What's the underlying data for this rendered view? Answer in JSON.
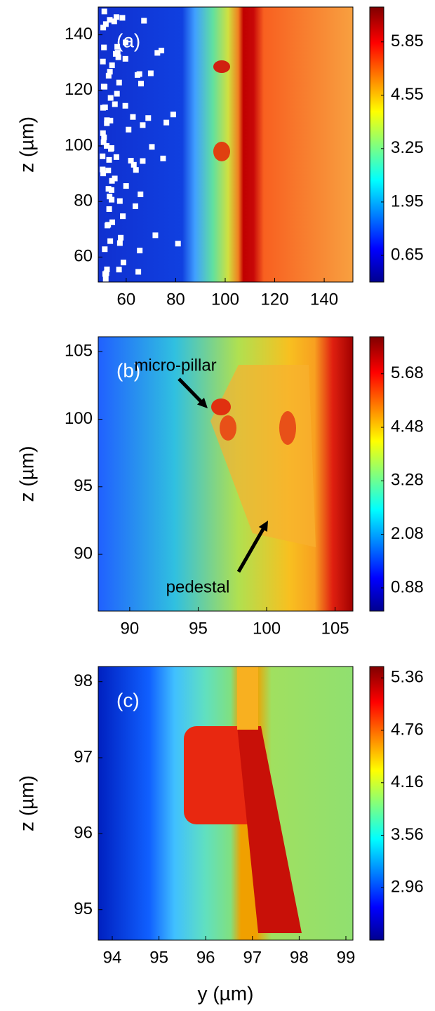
{
  "chart_data": [
    {
      "type": "heatmap",
      "colormap": "jet",
      "label": "(a)",
      "ylabel": "z (µm)",
      "xlim": [
        48.7,
        151.6
      ],
      "ylim": [
        51,
        150
      ],
      "xticks": [
        60,
        80,
        100,
        120,
        140
      ],
      "yticks": [
        60,
        80,
        100,
        120,
        140
      ],
      "colorbar": {
        "lim": [
          0,
          6.7
        ],
        "ticks": [
          0.65,
          1.95,
          3.25,
          4.55,
          5.85
        ]
      }
    },
    {
      "type": "heatmap",
      "colormap": "jet",
      "label": "(b)",
      "ylabel": "z (µm)",
      "xlim": [
        87.7,
        106.3
      ],
      "ylim": [
        85.8,
        106.1
      ],
      "xticks": [
        90,
        95,
        100,
        105
      ],
      "yticks": [
        90,
        95,
        100,
        105
      ],
      "colorbar": {
        "lim": [
          0.36,
          6.51
        ],
        "ticks": [
          0.88,
          2.08,
          3.28,
          4.48,
          5.68
        ]
      },
      "annotations": [
        "micro-pillar",
        "pedestal"
      ]
    },
    {
      "type": "heatmap",
      "colormap": "jet",
      "label": "(c)",
      "ylabel": "z (µm)",
      "xlabel": "y (µm)",
      "xlim": [
        93.7,
        99.15
      ],
      "ylim": [
        94.6,
        98.2
      ],
      "xticks": [
        94,
        95,
        96,
        97,
        98,
        99
      ],
      "yticks": [
        95,
        96,
        97,
        98
      ],
      "colorbar": {
        "lim": [
          2.36,
          5.49
        ],
        "ticks": [
          2.96,
          3.56,
          4.16,
          4.76,
          5.36
        ]
      }
    }
  ]
}
